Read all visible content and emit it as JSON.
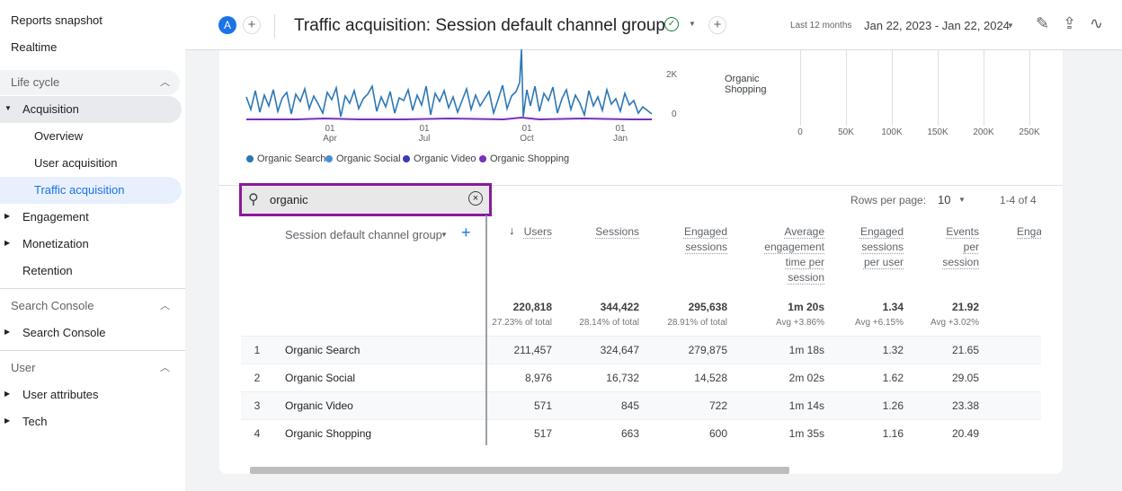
{
  "sidebar": {
    "top": [
      "Reports snapshot",
      "Realtime"
    ],
    "sections": [
      {
        "title": "Life cycle",
        "items": [
          {
            "label": "Acquisition",
            "children": [
              "Overview",
              "User acquisition",
              "Traffic acquisition"
            ]
          },
          {
            "label": "Engagement"
          },
          {
            "label": "Monetization"
          },
          {
            "label": "Retention"
          }
        ]
      },
      {
        "title": "Search Console",
        "items": [
          {
            "label": "Search Console"
          }
        ]
      },
      {
        "title": "User",
        "items": [
          {
            "label": "User attributes"
          },
          {
            "label": "Tech"
          }
        ]
      }
    ]
  },
  "header": {
    "property_badge": "A",
    "title": "Traffic acquisition: Session default channel group",
    "date_label": "Last 12 months",
    "date_range": "Jan 22, 2023 - Jan 22, 2024"
  },
  "line_chart": {
    "y_labels": [
      "2K",
      "0"
    ],
    "x_labels": [
      [
        "01",
        "Apr"
      ],
      [
        "01",
        "Jul"
      ],
      [
        "01",
        "Oct"
      ],
      [
        "01",
        "Jan"
      ]
    ],
    "legend": [
      {
        "name": "Organic Search",
        "color": "#2c77b5"
      },
      {
        "name": "Organic Social",
        "color": "#4a8fd6"
      },
      {
        "name": "Organic Video",
        "color": "#3a3ab8"
      },
      {
        "name": "Organic Shopping",
        "color": "#7a2fbd"
      }
    ]
  },
  "bar_chart": {
    "label": "Organic Shopping",
    "x_labels": [
      "0",
      "50K",
      "100K",
      "150K",
      "200K",
      "250K"
    ]
  },
  "search": {
    "query": "organic"
  },
  "pagination": {
    "rows_per_page_label": "Rows per page:",
    "rows_per_page": "10",
    "range": "1-4 of 4"
  },
  "table": {
    "dimension": "Session default channel group",
    "columns": [
      "Users",
      "Sessions",
      "Engaged sessions",
      "Average engagement time per session",
      "Engaged sessions per user",
      "Events per session",
      "Enga"
    ],
    "totals": [
      {
        "value": "220,818",
        "note": "27.23% of total"
      },
      {
        "value": "344,422",
        "note": "28.14% of total"
      },
      {
        "value": "295,638",
        "note": "28.91% of total"
      },
      {
        "value": "1m 20s",
        "note": "Avg +3.86%"
      },
      {
        "value": "1.34",
        "note": "Avg +6.15%"
      },
      {
        "value": "21.92",
        "note": "Avg +3.02%"
      }
    ],
    "rows": [
      [
        "1",
        "Organic Search",
        "211,457",
        "324,647",
        "279,875",
        "1m 18s",
        "1.32",
        "21.65"
      ],
      [
        "2",
        "Organic Social",
        "8,976",
        "16,732",
        "14,528",
        "2m 02s",
        "1.62",
        "29.05"
      ],
      [
        "3",
        "Organic Video",
        "571",
        "845",
        "722",
        "1m 14s",
        "1.26",
        "23.38"
      ],
      [
        "4",
        "Organic Shopping",
        "517",
        "663",
        "600",
        "1m 35s",
        "1.16",
        "20.49"
      ]
    ]
  }
}
